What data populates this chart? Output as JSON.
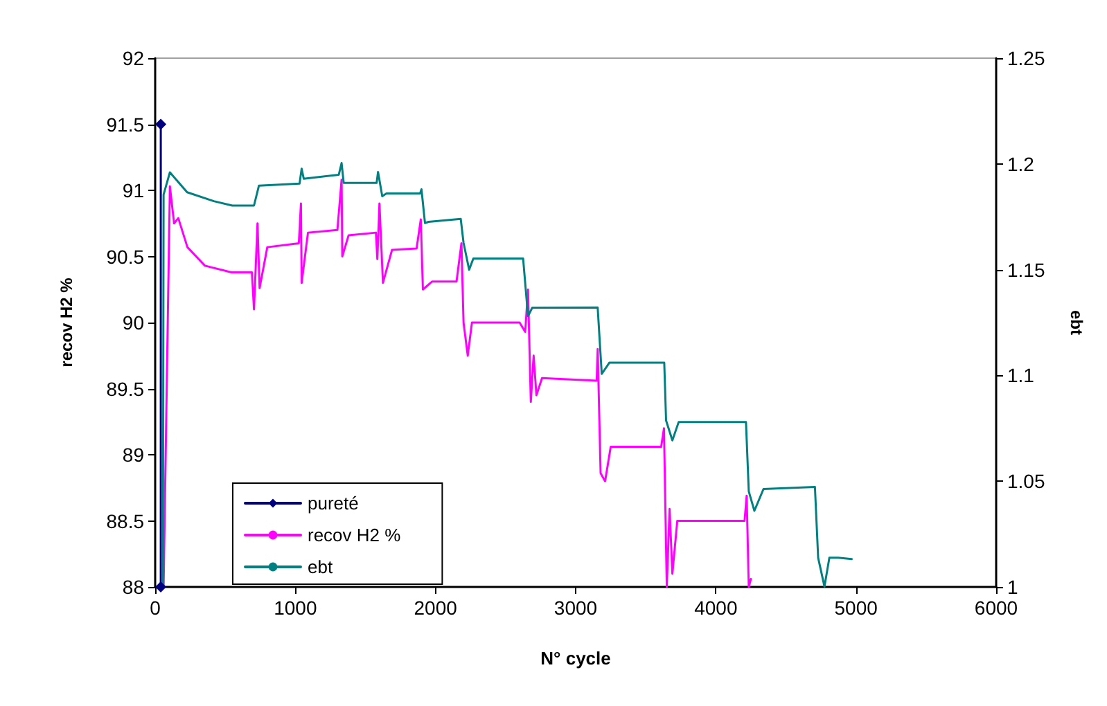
{
  "chart_data": {
    "type": "line",
    "xlabel": "N° cycle",
    "ylabel": "recov H2 %",
    "y2label": "ebt",
    "xlim": [
      0,
      6000
    ],
    "xticks": [
      0,
      1000,
      2000,
      3000,
      4000,
      5000,
      6000
    ],
    "ylim": [
      88,
      92
    ],
    "yticks": [
      88,
      88.5,
      89,
      89.5,
      90,
      90.5,
      91,
      91.5,
      92
    ],
    "y2lim": [
      1,
      1.25
    ],
    "y2ticks": [
      1,
      1.05,
      1.1,
      1.15,
      1.2,
      1.25
    ],
    "legend": "bottom left",
    "series": [
      {
        "name": "pureté",
        "color": "#000080",
        "marker": "diamond",
        "x": [
          40,
          40
        ],
        "values": [
          88,
          91.5
        ]
      },
      {
        "name": "recov H2 %",
        "color": "#ff00ff",
        "marker": "none",
        "x": [
          60,
          105,
          135,
          165,
          230,
          355,
          545,
          690,
          705,
          730,
          745,
          800,
          1025,
          1040,
          1045,
          1090,
          1300,
          1330,
          1335,
          1380,
          1575,
          1585,
          1600,
          1625,
          1690,
          1865,
          1895,
          1910,
          1975,
          2150,
          2185,
          2200,
          2230,
          2260,
          2600,
          2640,
          2660,
          2680,
          2700,
          2720,
          2760,
          3150,
          3157,
          3178,
          3210,
          3250,
          3610,
          3630,
          3650,
          3670,
          3690,
          3725,
          4205,
          4220,
          4235,
          4250
        ],
        "values": [
          88,
          91.03,
          90.75,
          90.79,
          90.57,
          90.43,
          90.38,
          90.38,
          90.1,
          90.75,
          90.26,
          90.57,
          90.6,
          90.9,
          90.3,
          90.68,
          90.7,
          91.08,
          90.5,
          90.66,
          90.68,
          90.48,
          90.9,
          90.3,
          90.55,
          90.56,
          90.78,
          90.25,
          90.31,
          90.31,
          90.6,
          90.0,
          89.75,
          90.0,
          90.0,
          89.93,
          90.25,
          89.4,
          89.75,
          89.45,
          89.58,
          89.56,
          89.8,
          88.86,
          88.8,
          89.06,
          89.06,
          89.2,
          88.0,
          88.59,
          88.1,
          88.5,
          88.5,
          88.69,
          88.0,
          88.06
        ]
      },
      {
        "name": "ebt",
        "color": "#008080",
        "marker": "none",
        "axis": "y2",
        "x": [
          55,
          60,
          105,
          228,
          418,
          550,
          705,
          740,
          1030,
          1045,
          1060,
          1310,
          1330,
          1345,
          1580,
          1590,
          1620,
          1650,
          1890,
          1900,
          1925,
          1950,
          2180,
          2200,
          2240,
          2270,
          2625,
          2660,
          2690,
          3157,
          3186,
          3240,
          3632,
          3645,
          3690,
          3735,
          4215,
          4235,
          4275,
          4340,
          4707,
          4730,
          4775,
          4810,
          4873,
          4970
        ],
        "values": [
          1,
          1.1855,
          1.196,
          1.1866,
          1.1824,
          1.1803,
          1.1803,
          1.1897,
          1.1907,
          1.1977,
          1.193,
          1.1949,
          1.2004,
          1.191,
          1.191,
          1.1962,
          1.1847,
          1.186,
          1.186,
          1.188,
          1.172,
          1.1726,
          1.174,
          1.1627,
          1.15,
          1.1553,
          1.1553,
          1.128,
          1.132,
          1.1321,
          1.1007,
          1.106,
          1.106,
          1.0787,
          1.0693,
          1.078,
          1.078,
          1.0452,
          1.036,
          1.0463,
          1.0473,
          1.0138,
          1.0002,
          1.0138,
          1.0138,
          1.0132
        ]
      }
    ]
  }
}
